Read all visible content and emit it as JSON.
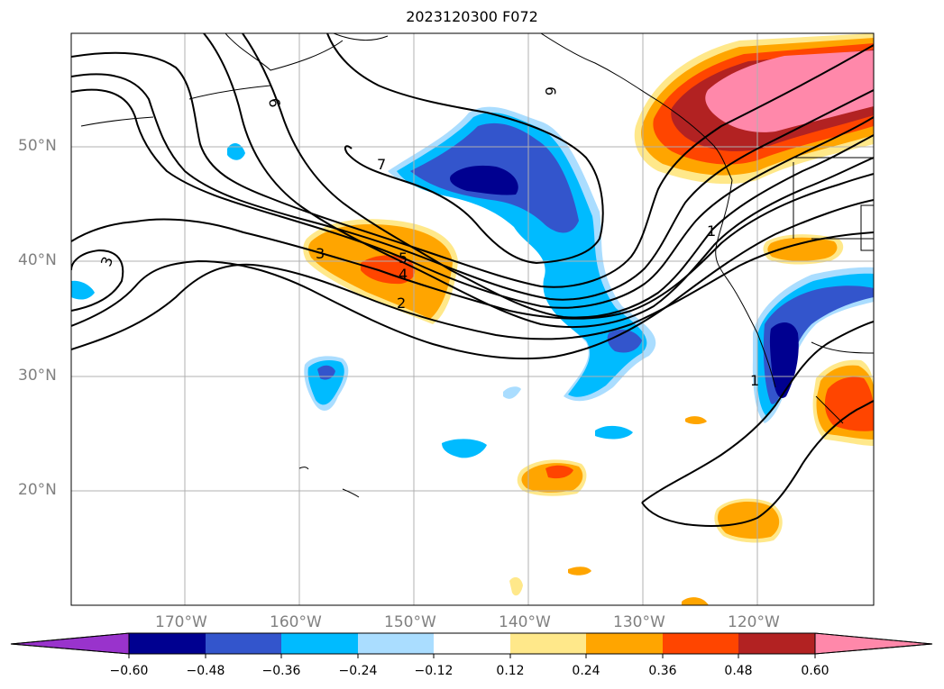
{
  "title": "2023120300 F072",
  "latitude_labels": [
    "50°N",
    "40°N",
    "30°N",
    "20°N"
  ],
  "longitude_labels": [
    "170°W",
    "160°W",
    "150°W",
    "140°W",
    "130°W",
    "120°W"
  ],
  "contour_labels": [
    "6",
    "6",
    "7",
    "5",
    "4",
    "3",
    "2",
    "3",
    "1",
    "1"
  ],
  "colorbar": {
    "ticks": [
      "−0.60",
      "−0.48",
      "−0.36",
      "−0.24",
      "−0.12",
      "0.12",
      "0.24",
      "0.36",
      "0.48",
      "0.60"
    ],
    "colors": [
      "#9933cc",
      "#000090",
      "#3355cc",
      "#00bbff",
      "#aaddff",
      "#ffffff",
      "#ffe88a",
      "#ffa500",
      "#ff4500",
      "#b22222",
      "#ff88aa"
    ]
  },
  "colors": {
    "contour_line": "#000000",
    "gridline": "#b0b0b0",
    "label_gray": "#808080"
  }
}
